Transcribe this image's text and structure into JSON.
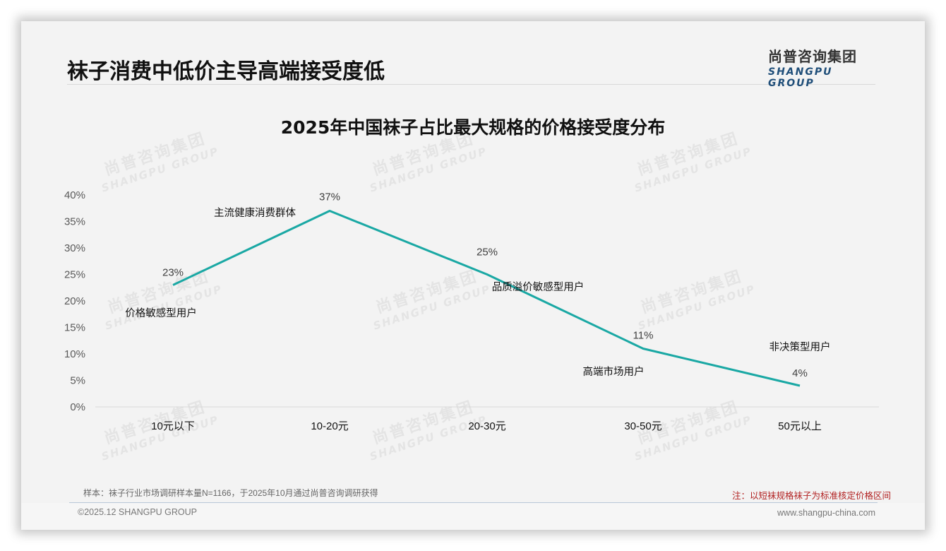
{
  "header": {
    "page_title": "袜子消费中低价主导高端接受度低",
    "logo_cn": "尚普咨询集团",
    "logo_en": "SHANGPU GROUP"
  },
  "watermark": {
    "cn": "尚普咨询集团",
    "en": "SHANGPU GROUP"
  },
  "chart_data": {
    "type": "line",
    "title": "2025年中国袜子占比最大规格的价格接受度分布",
    "categories": [
      "10元以下",
      "10-20元",
      "20-30元",
      "30-50元",
      "50元以上"
    ],
    "values": [
      23,
      37,
      25,
      11,
      4
    ],
    "value_labels": [
      "23%",
      "37%",
      "25%",
      "11%",
      "4%"
    ],
    "annotations": [
      "价格敏感型用户",
      "主流健康消费群体",
      "品质溢价敏感型用户",
      "高端市场用户",
      "非决策型用户"
    ],
    "yticks": [
      "0%",
      "5%",
      "10%",
      "15%",
      "20%",
      "25%",
      "30%",
      "35%",
      "40%"
    ],
    "ylim": [
      0,
      40
    ],
    "xlabel": "",
    "ylabel": "",
    "grid": false,
    "legend": "none",
    "line_color": "#1aa8a4"
  },
  "footer": {
    "sample_note": "样本：袜子行业市场调研样本量N=1166，于2025年10月通过尚普咨询调研获得",
    "note": "注：以短袜规格袜子为标准核定价格区间",
    "copyright": "©2025.12 SHANGPU GROUP",
    "website": "www.shangpu-china.com"
  }
}
